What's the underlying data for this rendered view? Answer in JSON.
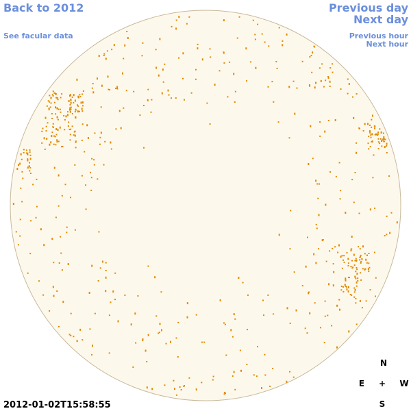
{
  "nav": {
    "back": "Back to 2012",
    "see_facular": "See facular data",
    "previous_day": "Previous day",
    "next_day": "Next day",
    "previous_hour": "Previous hour",
    "next_hour": "Next hour"
  },
  "timestamp": "2012-01-02T15:58:55",
  "compass": {
    "north": "N",
    "east": "E",
    "center": "+",
    "west": "W",
    "south": "S"
  }
}
